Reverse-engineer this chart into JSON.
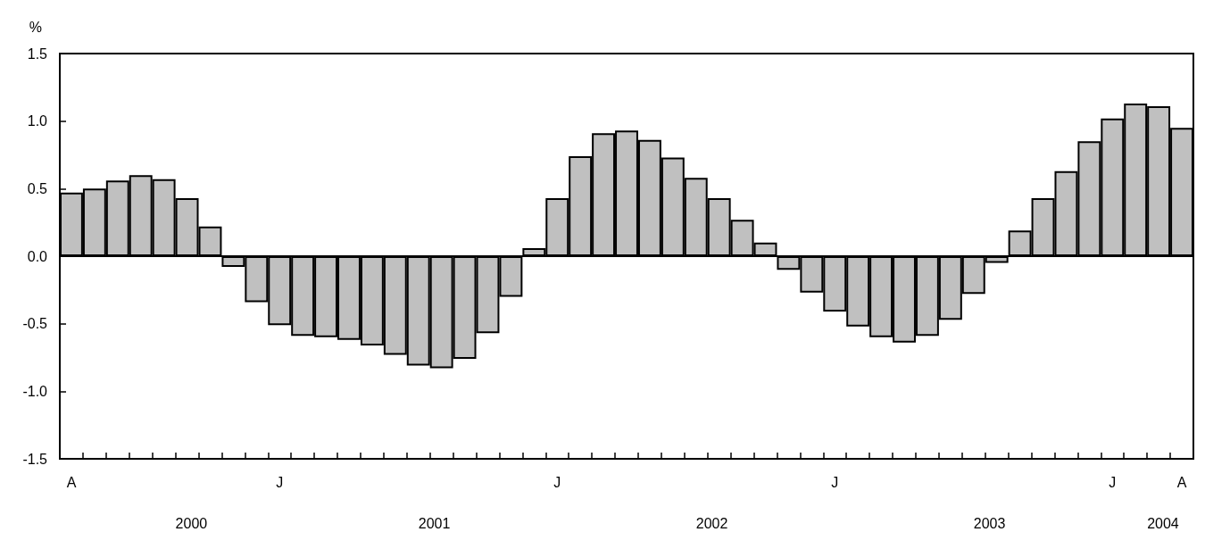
{
  "chart_data": {
    "type": "bar",
    "ylabel": "%",
    "categories": [
      "A",
      null,
      null,
      null,
      null,
      null,
      null,
      null,
      null,
      "J",
      null,
      null,
      null,
      null,
      null,
      null,
      null,
      null,
      null,
      null,
      null,
      "J",
      null,
      null,
      null,
      null,
      null,
      null,
      null,
      null,
      null,
      null,
      null,
      "J",
      null,
      null,
      null,
      null,
      null,
      null,
      null,
      null,
      null,
      null,
      null,
      "J",
      null,
      null,
      "A"
    ],
    "series": [
      {
        "color": "#c0c0c0",
        "values": [
          0.47,
          0.5,
          0.56,
          0.6,
          0.57,
          0.43,
          0.22,
          -0.08,
          -0.34,
          -0.51,
          -0.59,
          -0.6,
          -0.62,
          -0.66,
          -0.73,
          -0.81,
          -0.83,
          -0.76,
          -0.57,
          -0.3,
          0.06,
          0.43,
          0.74,
          0.91,
          0.93,
          0.86,
          0.73,
          0.58,
          0.43,
          0.27,
          0.1,
          -0.1,
          -0.27,
          -0.41,
          -0.52,
          -0.6,
          -0.64,
          -0.59,
          -0.47,
          -0.28,
          -0.05,
          0.19,
          0.43,
          0.63,
          0.85,
          1.02,
          1.13,
          1.11,
          0.95
        ]
      }
    ],
    "ylim": [
      -1.5,
      1.5
    ],
    "yticks": [
      {
        "value": -1.5,
        "label": "-1.5"
      },
      {
        "value": -1,
        "label": "-1.0"
      },
      {
        "value": -0.5,
        "label": "-0.5"
      },
      {
        "value": 0,
        "label": "0.0"
      },
      {
        "value": 0.5,
        "label": "0.5"
      },
      {
        "value": 1,
        "label": "1.0"
      },
      {
        "value": 1.5,
        "label": "1.5"
      }
    ],
    "ref_lines": [
      {
        "axis": "y",
        "value": 0,
        "color": "#000000"
      }
    ],
    "annotations": [
      "2000",
      "2001",
      "2002",
      "2003",
      "2004"
    ],
    "grid": false
  }
}
